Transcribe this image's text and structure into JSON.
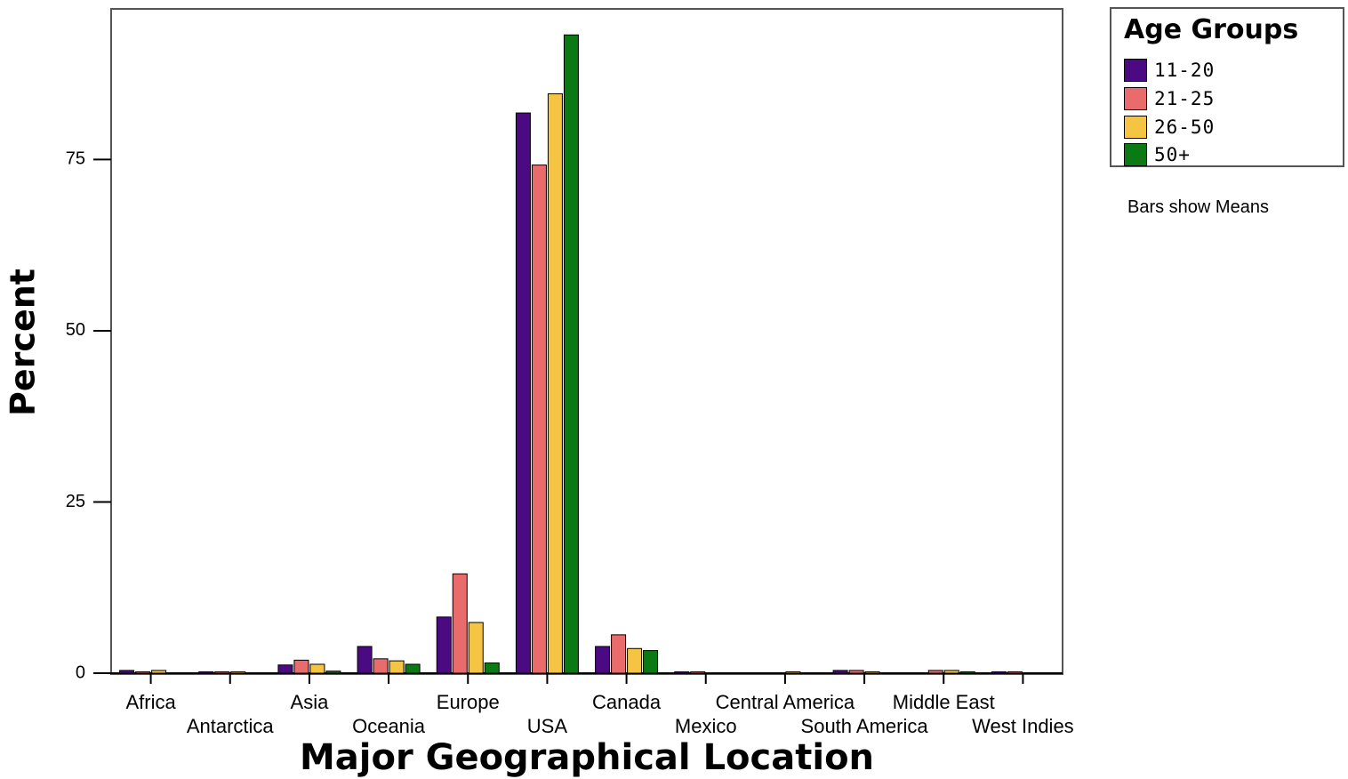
{
  "chart_data": {
    "type": "bar",
    "xlabel": "Major Geographical Location",
    "ylabel": "Percent",
    "ylim": [
      0,
      97
    ],
    "yticks": [
      0,
      25,
      50,
      75
    ],
    "grid": false,
    "legend_position": "top-right",
    "legend_title": "Age Groups",
    "note": "Bars show Means",
    "categories": [
      "Africa",
      "Antarctica",
      "Asia",
      "Oceania",
      "Europe",
      "USA",
      "Canada",
      "Mexico",
      "Central America",
      "South America",
      "Middle East",
      "West Indies"
    ],
    "series": [
      {
        "name": "11-20",
        "color": "#4b0a82",
        "values": [
          0.4,
          0.2,
          1.2,
          3.9,
          8.2,
          81.8,
          3.9,
          0.2,
          0,
          0.4,
          0,
          0.2
        ]
      },
      {
        "name": "21-25",
        "color": "#ea6b6b",
        "values": [
          0.2,
          0.2,
          1.9,
          2.1,
          14.5,
          74.2,
          5.6,
          0.2,
          0,
          0.4,
          0.4,
          0.2
        ]
      },
      {
        "name": "26-50",
        "color": "#f6c443",
        "values": [
          0.4,
          0.2,
          1.3,
          1.8,
          7.4,
          84.6,
          3.6,
          0,
          0.2,
          0.2,
          0.4,
          0
        ]
      },
      {
        "name": "50+",
        "color": "#0b7a14",
        "values": [
          0,
          0,
          0.3,
          1.3,
          1.5,
          93.2,
          3.3,
          0,
          0,
          0,
          0.2,
          0
        ]
      }
    ]
  }
}
